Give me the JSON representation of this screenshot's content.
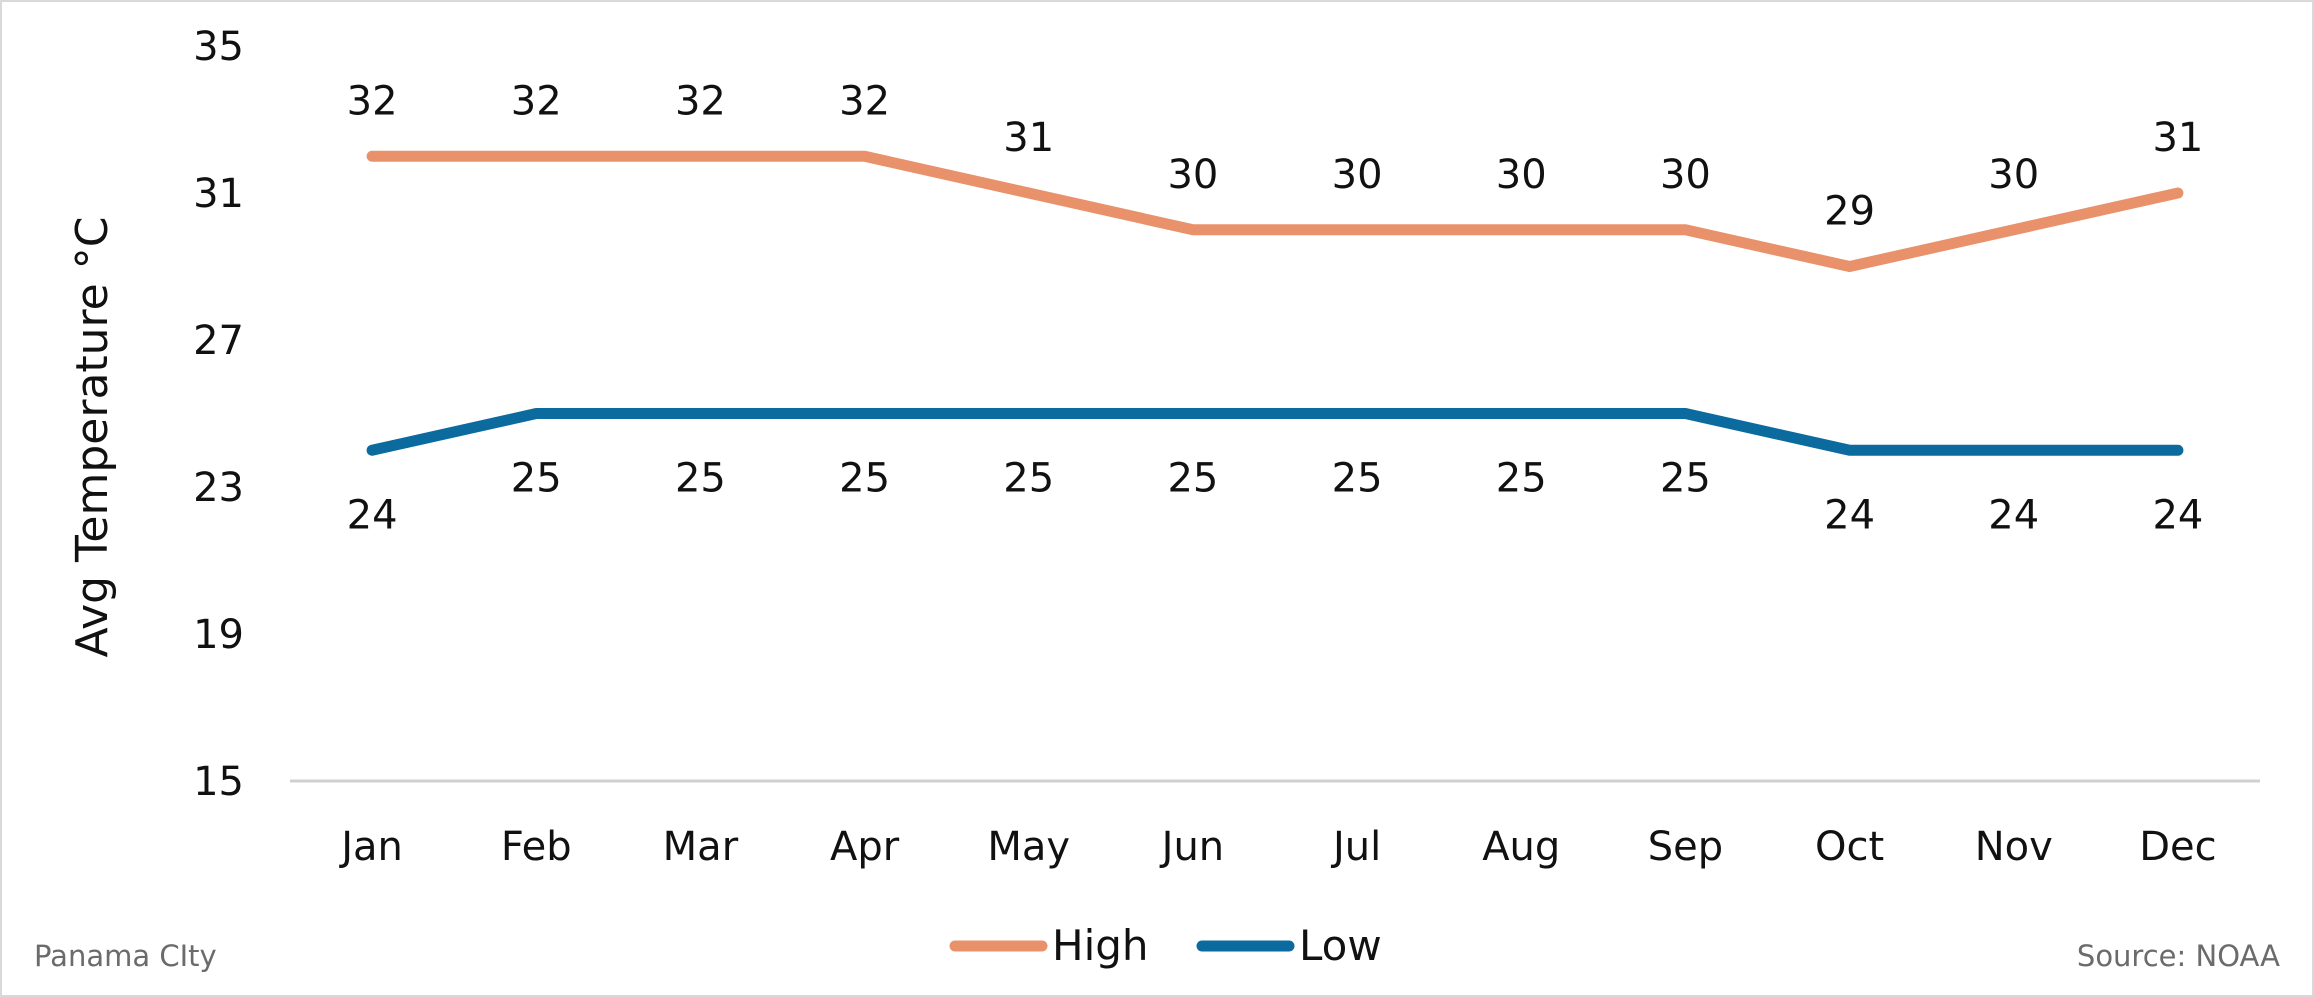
{
  "chart_data": {
    "type": "line",
    "categories": [
      "Jan",
      "Feb",
      "Mar",
      "Apr",
      "May",
      "Jun",
      "Jul",
      "Aug",
      "Sep",
      "Oct",
      "Nov",
      "Dec"
    ],
    "series": [
      {
        "name": "High",
        "color": "#E9916B",
        "values": [
          32,
          32,
          32,
          32,
          31,
          30,
          30,
          30,
          30,
          29,
          30,
          31
        ]
      },
      {
        "name": "Low",
        "color": "#0B6A9E",
        "values": [
          24,
          25,
          25,
          25,
          25,
          25,
          25,
          25,
          25,
          24,
          24,
          24
        ]
      }
    ],
    "ylabel": "Avg Temperature °C",
    "ylim": [
      15,
      35
    ],
    "yticks": [
      15,
      19,
      23,
      27,
      31,
      35
    ],
    "grid": false,
    "legend_position": "bottom-center"
  },
  "footer": {
    "location": "Panama CIty",
    "source": "Source: NOAA"
  }
}
